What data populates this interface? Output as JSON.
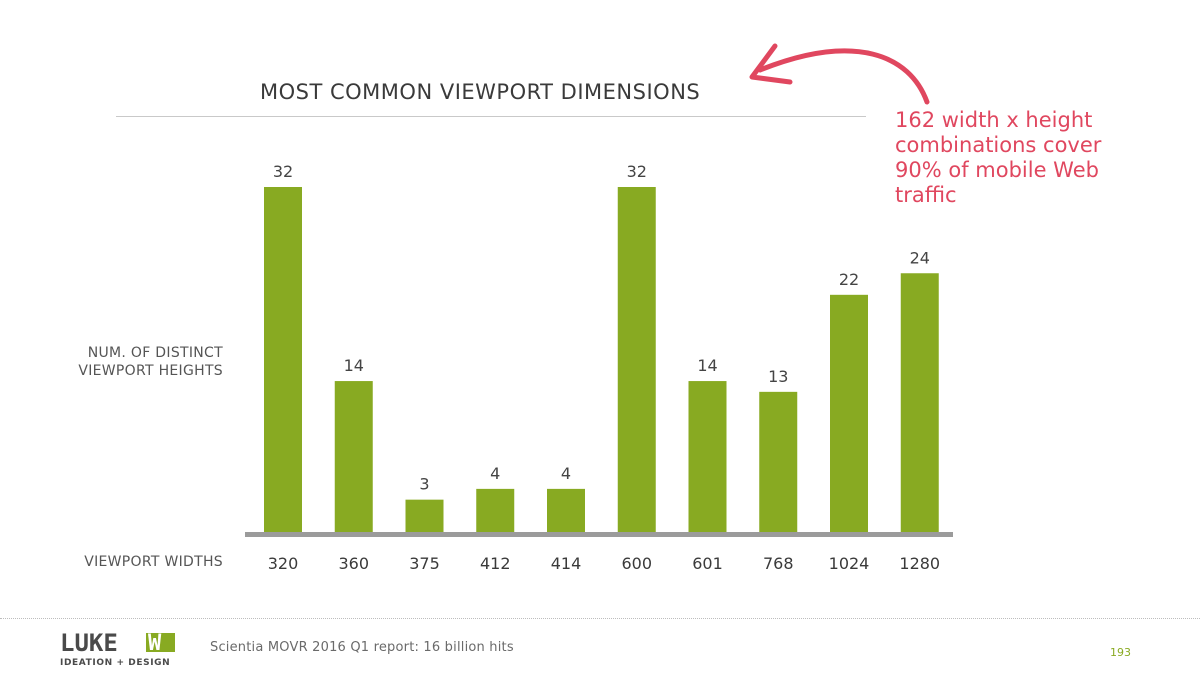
{
  "slide": {
    "title": "MOST COMMON VIEWPORT DIMENSIONS",
    "annotation": [
      "162 width x height",
      "combinations cover",
      "90% of mobile Web",
      "traffic"
    ],
    "source": "Scientia MOVR 2016 Q1 report: 16 billion hits",
    "page_number": "193",
    "logo": {
      "top": "LUKEW",
      "bottom": "IDEATION + DESIGN"
    }
  },
  "chart_data": {
    "type": "bar",
    "title": "MOST COMMON VIEWPORT DIMENSIONS",
    "xlabel": "VIEWPORT WIDTHS",
    "ylabel": [
      "NUM. OF DISTINCT",
      "VIEWPORT HEIGHTS"
    ],
    "categories": [
      "320",
      "360",
      "375",
      "412",
      "414",
      "600",
      "601",
      "768",
      "1024",
      "1280"
    ],
    "values": [
      32,
      14,
      3,
      4,
      4,
      32,
      14,
      13,
      22,
      24
    ],
    "ylim": [
      0,
      32
    ],
    "grid": false,
    "legend": "none",
    "bar_color": "#88aa22",
    "baseline_color": "#9b9b9b",
    "annotation_color": "#e0475f"
  }
}
